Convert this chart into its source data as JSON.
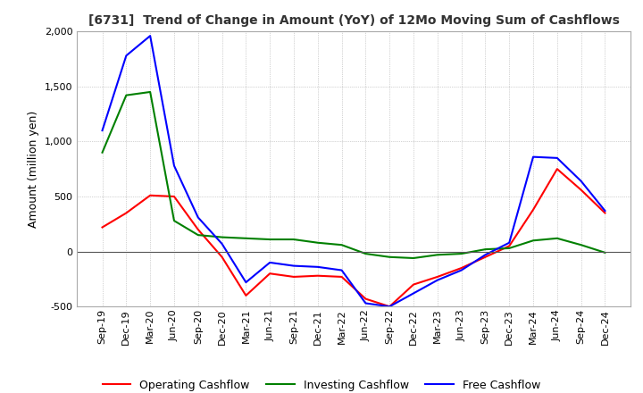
{
  "title": "[6731]  Trend of Change in Amount (YoY) of 12Mo Moving Sum of Cashflows",
  "ylabel": "Amount (million yen)",
  "ylim": [
    -500,
    2000
  ],
  "yticks": [
    -500,
    0,
    500,
    1000,
    1500,
    2000
  ],
  "background_color": "#ffffff",
  "grid_color": "#aaaaaa",
  "x_labels": [
    "Sep-19",
    "Dec-19",
    "Mar-20",
    "Jun-20",
    "Sep-20",
    "Dec-20",
    "Mar-21",
    "Jun-21",
    "Sep-21",
    "Dec-21",
    "Mar-22",
    "Jun-22",
    "Sep-22",
    "Dec-22",
    "Mar-23",
    "Jun-23",
    "Sep-23",
    "Dec-23",
    "Mar-24",
    "Jun-24",
    "Sep-24",
    "Dec-24"
  ],
  "operating": [
    220,
    350,
    510,
    500,
    200,
    -50,
    -400,
    -200,
    -230,
    -220,
    -230,
    -430,
    -500,
    -300,
    -230,
    -150,
    -50,
    50,
    380,
    750,
    560,
    350
  ],
  "investing": [
    900,
    1420,
    1450,
    280,
    150,
    130,
    120,
    110,
    110,
    80,
    60,
    -20,
    -50,
    -60,
    -30,
    -20,
    20,
    30,
    100,
    120,
    60,
    -10
  ],
  "free": [
    1100,
    1780,
    1960,
    780,
    310,
    70,
    -280,
    -100,
    -130,
    -140,
    -170,
    -470,
    -500,
    -380,
    -260,
    -170,
    -30,
    80,
    860,
    850,
    640,
    370
  ],
  "operating_color": "#ff0000",
  "investing_color": "#008000",
  "free_color": "#0000ff",
  "legend_labels": [
    "Operating Cashflow",
    "Investing Cashflow",
    "Free Cashflow"
  ]
}
